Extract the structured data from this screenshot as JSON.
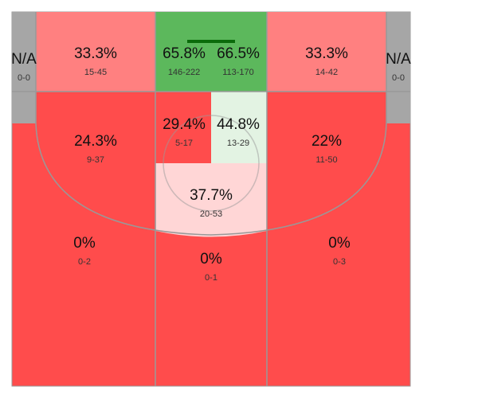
{
  "zones": [
    {
      "pct": "N/A",
      "record": "0-0"
    },
    {
      "pct": "33.3%",
      "record": "15-45"
    },
    {
      "pct": "65.8%",
      "record": "146-222"
    },
    {
      "pct": "66.5%",
      "record": "113-170"
    },
    {
      "pct": "33.3%",
      "record": "14-42"
    },
    {
      "pct": "N/A",
      "record": "0-0"
    },
    {
      "pct": "24.3%",
      "record": "9-37"
    },
    {
      "pct": "29.4%",
      "record": "5-17"
    },
    {
      "pct": "44.8%",
      "record": "13-29"
    },
    {
      "pct": "22%",
      "record": "11-50"
    },
    {
      "pct": "37.7%",
      "record": "20-53"
    },
    {
      "pct": "0%",
      "record": "0-2"
    },
    {
      "pct": "0%",
      "record": "0-1"
    },
    {
      "pct": "0%",
      "record": "0-3"
    }
  ]
}
